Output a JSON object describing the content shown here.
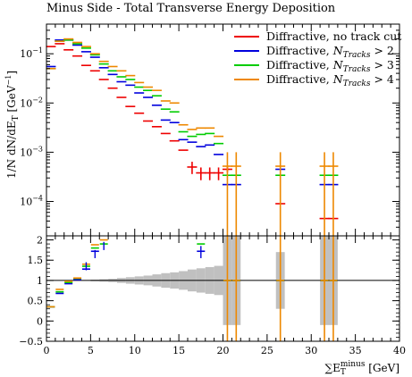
{
  "title": "Minus Side - Total Transverse Energy Deposition",
  "chart_data": [
    {
      "type": "scatter",
      "panel": "main",
      "yscale": "log",
      "ylim": [
        2e-05,
        0.4
      ],
      "xlim": [
        0,
        40
      ],
      "ylabel": "1/N dN/dE_T [GeV^-1]",
      "ytick_labels": [
        "10^-1",
        "10^-2",
        "10^-3",
        "10^-4"
      ],
      "legend_position": "top-right",
      "series": [
        {
          "name": "Diffractive, no track cut",
          "legend_label": "Diffractive, no track cut",
          "color": "#ee0000",
          "x": [
            0.5,
            1.5,
            2.5,
            3.5,
            4.5,
            5.5,
            6.5,
            7.5,
            8.5,
            9.5,
            10.5,
            11.5,
            12.5,
            13.5,
            14.5,
            15.5,
            16.5,
            17.5,
            18.5,
            19.5,
            20.5
          ],
          "y": [
            0.14,
            0.16,
            0.12,
            0.09,
            0.058,
            0.045,
            0.03,
            0.02,
            0.013,
            0.0085,
            0.0062,
            0.0043,
            0.0033,
            0.0024,
            0.0017,
            0.0011,
            0.0005,
            0.00038,
            0.00038,
            0.00038,
            0.00045
          ],
          "yerr": [
            0,
            0,
            0,
            0,
            0,
            0,
            0,
            0,
            0,
            0,
            0,
            0,
            0,
            0,
            0,
            0,
            0.00014,
            0.00011,
            0.00011,
            0.00011,
            6e-05
          ],
          "extra_points": [
            {
              "x": 26.5,
              "y": 9e-05
            },
            {
              "x": 31.5,
              "y": 4.5e-05
            },
            {
              "x": 32.5,
              "y": 4.5e-05
            }
          ]
        },
        {
          "name": "Diffractive, N_Tracks > 2",
          "legend_label": "Diffractive, ",
          "legend_symbol": "N",
          "legend_subscript": "Tracks",
          "legend_cut": " > 2",
          "color": "#0000dd",
          "x": [
            0.5,
            1.5,
            2.5,
            3.5,
            4.5,
            5.5,
            6.5,
            7.5,
            8.5,
            9.5,
            10.5,
            11.5,
            12.5,
            13.5,
            14.5,
            15.5,
            16.5,
            17.5,
            18.5,
            19.5,
            20.5,
            21.5,
            26.5,
            31.5,
            32.5
          ],
          "y": [
            0.055,
            0.19,
            0.19,
            0.15,
            0.11,
            0.085,
            0.052,
            0.038,
            0.027,
            0.023,
            0.016,
            0.013,
            0.009,
            0.0045,
            0.004,
            0.0018,
            0.0016,
            0.0013,
            0.0014,
            0.0009,
            0.00022,
            0.00022,
            0.00045,
            0.00022,
            0.00022
          ]
        },
        {
          "name": "Diffractive, N_Tracks > 3",
          "legend_label": "Diffractive, ",
          "legend_symbol": "N",
          "legend_subscript": "Tracks",
          "legend_cut": " > 3",
          "color": "#00cc00",
          "x": [
            0.5,
            1.5,
            2.5,
            3.5,
            4.5,
            5.5,
            6.5,
            7.5,
            8.5,
            9.5,
            10.5,
            11.5,
            12.5,
            13.5,
            14.5,
            15.5,
            16.5,
            17.5,
            18.5,
            19.5,
            20.5,
            21.5,
            26.5,
            31.5,
            32.5
          ],
          "y": [
            0.05,
            0.18,
            0.19,
            0.16,
            0.13,
            0.095,
            0.062,
            0.045,
            0.034,
            0.03,
            0.021,
            0.018,
            0.014,
            0.0075,
            0.0066,
            0.0026,
            0.0021,
            0.0023,
            0.0024,
            0.0015,
            0.00034,
            0.00034,
            0.00034,
            0.00034,
            0.00034
          ]
        },
        {
          "name": "Diffractive, N_Tracks > 4",
          "legend_label": "Diffractive, ",
          "legend_symbol": "N",
          "legend_subscript": "Tracks",
          "legend_cut": " > 4",
          "color": "#ee8800",
          "x": [
            0.5,
            1.5,
            2.5,
            3.5,
            4.5,
            5.5,
            6.5,
            7.5,
            8.5,
            9.5,
            10.5,
            11.5,
            12.5,
            13.5,
            14.5,
            15.5,
            16.5,
            17.5,
            18.5,
            19.5,
            20.5,
            21.5,
            26.5,
            31.5,
            32.5
          ],
          "y": [
            0.05,
            0.18,
            0.2,
            0.17,
            0.14,
            0.1,
            0.07,
            0.055,
            0.045,
            0.036,
            0.026,
            0.021,
            0.018,
            0.011,
            0.01,
            0.0036,
            0.0029,
            0.0031,
            0.0031,
            0.0021,
            0.00052,
            0.00052,
            0.00052,
            0.00052,
            0.00052
          ]
        }
      ]
    },
    {
      "type": "scatter",
      "panel": "ratio",
      "xlim": [
        0,
        40
      ],
      "ylim": [
        -0.5,
        2.1
      ],
      "xlabel": "∑E_T^minus [GeV]",
      "xticks": [
        0,
        5,
        10,
        15,
        20,
        25,
        30,
        35,
        40
      ],
      "yticks": [
        -0.5,
        0,
        0.5,
        1,
        1.5,
        2
      ],
      "ytick_labels": [
        "−0.5",
        "0",
        "0.5",
        "1",
        "1.5",
        "2"
      ],
      "reference_band": {
        "x_edges": [
          0,
          1,
          2,
          3,
          4,
          5,
          6,
          7,
          8,
          9,
          10,
          11,
          12,
          13,
          14,
          15,
          16,
          17,
          18,
          19,
          20,
          21,
          22
        ],
        "halfwidth": [
          0,
          0,
          0,
          0,
          0.01,
          0.02,
          0.03,
          0.04,
          0.06,
          0.08,
          0.1,
          0.12,
          0.15,
          0.18,
          0.2,
          0.23,
          0.27,
          0.3,
          0.33,
          0.36,
          1.4,
          1.4
        ],
        "extra": [
          {
            "x0": 26,
            "x1": 27,
            "halfwidth": 0.7
          },
          {
            "x0": 31,
            "x1": 33,
            "halfwidth": 1.4
          }
        ]
      },
      "series": [
        {
          "name": "Diffractive, N_Tracks > 2",
          "color": "#0000dd",
          "x": [
            0.5,
            1.5,
            2.5,
            3.5,
            4.5,
            5.5,
            17.5,
            20.5,
            21.5,
            26.5,
            31.5,
            32.5
          ],
          "y": [
            0.35,
            0.68,
            0.92,
            1.02,
            1.28,
            1.72,
            1.72,
            1.0,
            1.0,
            1.0,
            1.0,
            1.0
          ]
        },
        {
          "name": "Diffractive, N_Tracks > 3",
          "color": "#00cc00",
          "x": [
            0.5,
            1.5,
            2.5,
            3.5,
            4.5,
            5.5,
            6.5,
            17.5,
            20.5,
            21.5,
            26.5,
            31.5,
            32.5
          ],
          "y": [
            0.35,
            0.72,
            0.95,
            1.05,
            1.35,
            1.8,
            1.9,
            1.9,
            1.0,
            1.0,
            1.0,
            1.0,
            1.0
          ]
        },
        {
          "name": "Diffractive, N_Tracks > 4",
          "color": "#ee8800",
          "x": [
            0.5,
            1.5,
            2.5,
            3.5,
            4.5,
            5.5,
            6.5,
            20.5,
            21.5,
            26.5,
            31.5,
            32.5
          ],
          "y": [
            0.35,
            0.78,
            0.98,
            1.06,
            1.4,
            1.88,
            2.0,
            1.0,
            1.0,
            1.0,
            1.0,
            1.0
          ]
        }
      ]
    }
  ]
}
